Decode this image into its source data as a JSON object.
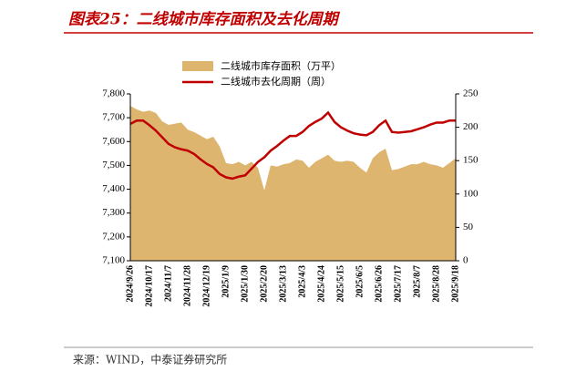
{
  "chart_data": {
    "type": "area-line",
    "title": "图表25：二线城市库存面积及去化周期",
    "source": "来源：WIND，中泰证券研究所",
    "categories": [
      "2024/9/26",
      null,
      null,
      "2024/10/17",
      null,
      null,
      "2024/11/7",
      null,
      null,
      "2024/11/28",
      null,
      null,
      "2024/12/19",
      null,
      null,
      "2025/1/9",
      null,
      null,
      "2025/1/30",
      null,
      null,
      "2025/2/20",
      null,
      null,
      "2025/3/13",
      null,
      null,
      "2025/4/3",
      null,
      null,
      "2025/4/24",
      null,
      null,
      "2025/5/15",
      null,
      null,
      "2025/6/5",
      null,
      null,
      "2025/6/26",
      null,
      null,
      "2025/7/17",
      null,
      null,
      "2025/8/7",
      null,
      null,
      "2025/8/28",
      null,
      null,
      "2025/9/18"
    ],
    "series": [
      {
        "name": "二线城市库存面积（万平）",
        "color": "#deb56e",
        "axis": "y",
        "values": [
          7750,
          7735,
          7725,
          7730,
          7720,
          7685,
          7670,
          7675,
          7680,
          7650,
          7640,
          7625,
          7610,
          7620,
          7580,
          7510,
          7505,
          7515,
          7500,
          7515,
          7490,
          7395,
          7500,
          7495,
          7505,
          7510,
          7525,
          7520,
          7490,
          7515,
          7530,
          7545,
          7520,
          7515,
          7520,
          7515,
          7490,
          7470,
          7530,
          7555,
          7570,
          7480,
          7485,
          7495,
          7505,
          7505,
          7515,
          7505,
          7500,
          7490,
          7510,
          7530
        ]
      },
      {
        "name": "二线城市去化周期（周）",
        "color": "#c00000",
        "axis": "y2",
        "values": [
          205,
          210,
          210,
          203,
          195,
          185,
          175,
          170,
          167,
          165,
          160,
          152,
          145,
          140,
          130,
          125,
          123,
          126,
          128,
          138,
          148,
          155,
          165,
          172,
          180,
          187,
          187,
          193,
          202,
          208,
          213,
          222,
          208,
          200,
          195,
          191,
          189,
          188,
          193,
          203,
          210,
          193,
          192,
          193,
          194,
          197,
          200,
          204,
          207,
          207,
          210,
          210
        ]
      }
    ],
    "ylim": [
      7100,
      7800
    ],
    "yticks": [
      {
        "value": 7100,
        "label": "7,100"
      },
      {
        "value": 7200,
        "label": "7,200"
      },
      {
        "value": 7300,
        "label": "7,300"
      },
      {
        "value": 7400,
        "label": "7,400"
      },
      {
        "value": 7500,
        "label": "7,500"
      },
      {
        "value": 7600,
        "label": "7,600"
      },
      {
        "value": 7700,
        "label": "7,700"
      },
      {
        "value": 7800,
        "label": "7,800"
      }
    ],
    "y2lim": [
      0,
      250
    ],
    "y2ticks": [
      0,
      50,
      100,
      150,
      200,
      250
    ]
  }
}
